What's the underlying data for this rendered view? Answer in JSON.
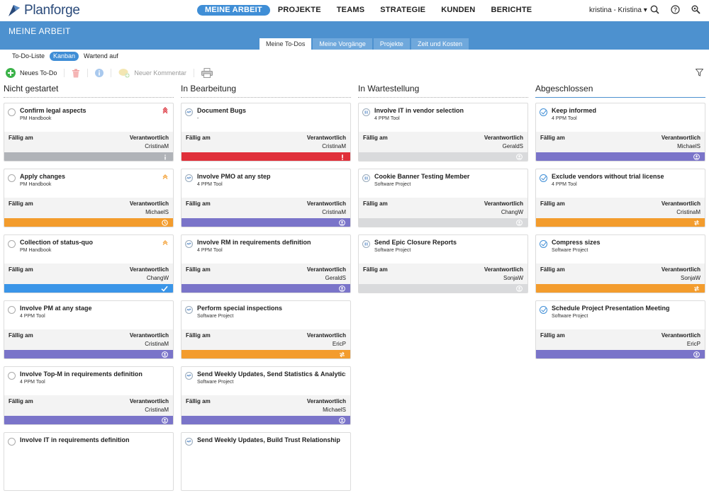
{
  "app": {
    "name": "Planforge"
  },
  "nav": {
    "items": [
      "MEINE ARBEIT",
      "PROJEKTE",
      "TEAMS",
      "STRATEGIE",
      "KUNDEN",
      "BERICHTE"
    ],
    "user": "kristina - Kristina"
  },
  "hero": {
    "title": "MEINE ARBEIT",
    "tabs": [
      "Meine To-Dos",
      "Meine Vorgänge",
      "Projekte",
      "Zeit und Kosten"
    ]
  },
  "views": [
    "To-Do-Liste",
    "Kanban",
    "Wartend auf"
  ],
  "toolbar": {
    "new_todo": "Neues To-Do",
    "new_comment": "Neuer Kommentar"
  },
  "labels": {
    "due": "Fällig am",
    "owner": "Verantwortlich"
  },
  "columns": [
    {
      "title": "Nicht gestartet",
      "cards": [
        {
          "title": "Confirm legal aspects",
          "project": "PM Handbook",
          "owner": "CristinaM",
          "prio": "high",
          "bar": "gray",
          "bar_icon": "info"
        },
        {
          "title": "Apply changes",
          "project": "PM Handbook",
          "owner": "MichaelS",
          "prio": "medium",
          "bar": "orange",
          "bar_icon": "clock"
        },
        {
          "title": "Collection of status-quo",
          "project": "PM Handbook",
          "owner": "ChangW",
          "prio": "medium",
          "bar": "blue",
          "bar_icon": "check"
        },
        {
          "title": "Involve PM at any stage",
          "project": "4 PPM Tool",
          "owner": "CristinaM",
          "prio": "",
          "bar": "purple",
          "bar_icon": "person"
        },
        {
          "title": "Involve Top-M in requirements definition",
          "project": "4 PPM Tool",
          "owner": "CristinaM",
          "prio": "",
          "bar": "purple",
          "bar_icon": "person"
        },
        {
          "title": "Involve IT in requirements definition",
          "project": "",
          "owner": "",
          "prio": "",
          "bar": "",
          "bar_icon": ""
        }
      ]
    },
    {
      "title": "In Bearbeitung",
      "cards": [
        {
          "title": "Document Bugs",
          "project": "-",
          "owner": "CristinaM",
          "prio": "",
          "bar": "red",
          "bar_icon": "exclaim"
        },
        {
          "title": "Involve PMO at any step",
          "project": "4 PPM Tool",
          "owner": "CristinaM",
          "prio": "",
          "bar": "purple",
          "bar_icon": "person"
        },
        {
          "title": "Involve RM in requirements definition",
          "project": "4 PPM Tool",
          "owner": "GeraldS",
          "prio": "",
          "bar": "purple",
          "bar_icon": "person"
        },
        {
          "title": "Perform special inspections",
          "project": "Software Project",
          "owner": "EricP",
          "prio": "",
          "bar": "orange",
          "bar_icon": "arrows"
        },
        {
          "title": "Send Weekly Updates, Send Statistics & Analytics",
          "project": "Software Project",
          "owner": "MichaelS",
          "prio": "",
          "bar": "purple",
          "bar_icon": "person"
        },
        {
          "title": "Send Weekly Updates, Build Trust Relationship",
          "project": "",
          "owner": "",
          "prio": "",
          "bar": "",
          "bar_icon": ""
        }
      ]
    },
    {
      "title": "In Wartestellung",
      "cards": [
        {
          "title": "Involve IT in vendor selection",
          "project": "4 PPM Tool",
          "owner": "GeraldS",
          "prio": "",
          "bar": "lgray",
          "bar_icon": "person"
        },
        {
          "title": "Cookie Banner Testing Member",
          "project": "Software Project",
          "owner": "ChangW",
          "prio": "",
          "bar": "lgray",
          "bar_icon": "person"
        },
        {
          "title": "Send Epic Closure Reports",
          "project": "Software Project",
          "owner": "SonjaW",
          "prio": "",
          "bar": "lgray",
          "bar_icon": "person"
        }
      ]
    },
    {
      "title": "Abgeschlossen",
      "cards": [
        {
          "title": "Keep informed",
          "project": "4 PPM Tool",
          "owner": "MichaelS",
          "prio": "",
          "bar": "purple",
          "bar_icon": "person"
        },
        {
          "title": "Exclude vendors without trial license",
          "project": "4 PPM Tool",
          "owner": "CristinaM",
          "prio": "",
          "bar": "orange",
          "bar_icon": "arrows"
        },
        {
          "title": "Compress sizes",
          "project": "Software Project",
          "owner": "SonjaW",
          "prio": "",
          "bar": "orange",
          "bar_icon": "arrows"
        },
        {
          "title": "Schedule Project Presentation Meeting",
          "project": "Software Project",
          "owner": "EricP",
          "prio": "",
          "bar": "purple",
          "bar_icon": "person"
        }
      ]
    }
  ]
}
